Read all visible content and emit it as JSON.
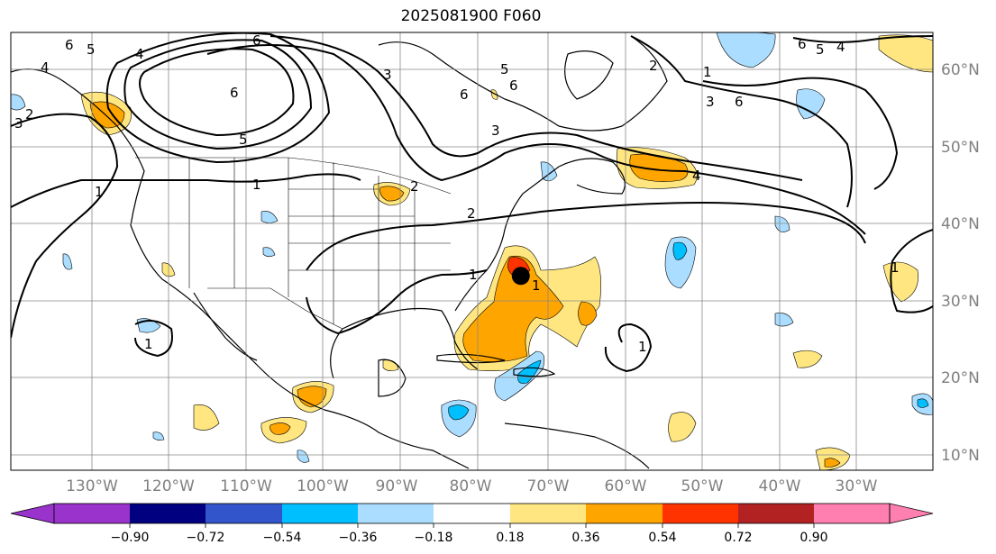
{
  "title": "2025081900 F060",
  "map": {
    "lon_range": [
      -137,
      -24
    ],
    "lat_range": [
      8,
      65
    ],
    "lat_ticks": [
      {
        "value": 10,
        "label": "10°N"
      },
      {
        "value": 20,
        "label": "20°N"
      },
      {
        "value": 30,
        "label": "30°N"
      },
      {
        "value": 40,
        "label": "40°N"
      },
      {
        "value": 50,
        "label": "50°N"
      },
      {
        "value": 60,
        "label": "60°N"
      }
    ],
    "lon_ticks": [
      {
        "value": -130,
        "label": "130°W"
      },
      {
        "value": -120,
        "label": "120°W"
      },
      {
        "value": -110,
        "label": "110°W"
      },
      {
        "value": -100,
        "label": "100°W"
      },
      {
        "value": -90,
        "label": "90°W"
      },
      {
        "value": -80,
        "label": "80°W"
      },
      {
        "value": -70,
        "label": "70°W"
      },
      {
        "value": -60,
        "label": "60°W"
      },
      {
        "value": -50,
        "label": "50°W"
      },
      {
        "value": -40,
        "label": "40°W"
      },
      {
        "value": -30,
        "label": "30°W"
      }
    ],
    "storm_center": {
      "lon": -74.5,
      "lat": 33.3
    },
    "contour_labels": [
      "1",
      "2",
      "3",
      "4",
      "5",
      "6"
    ]
  },
  "colorbar": {
    "colors": [
      "#9933cc",
      "#000080",
      "#3355cc",
      "#00bfff",
      "#aaddff",
      "#ffffff",
      "#ffe680",
      "#ffa500",
      "#ff3300",
      "#b22222",
      "#ff80b0"
    ],
    "over_color": "#ff80b0",
    "under_color": "#9933cc",
    "tick_labels": [
      "−0.90",
      "−0.72",
      "−0.54",
      "−0.36",
      "−0.18",
      "0.18",
      "0.36",
      "0.54",
      "0.72",
      "0.90"
    ]
  }
}
